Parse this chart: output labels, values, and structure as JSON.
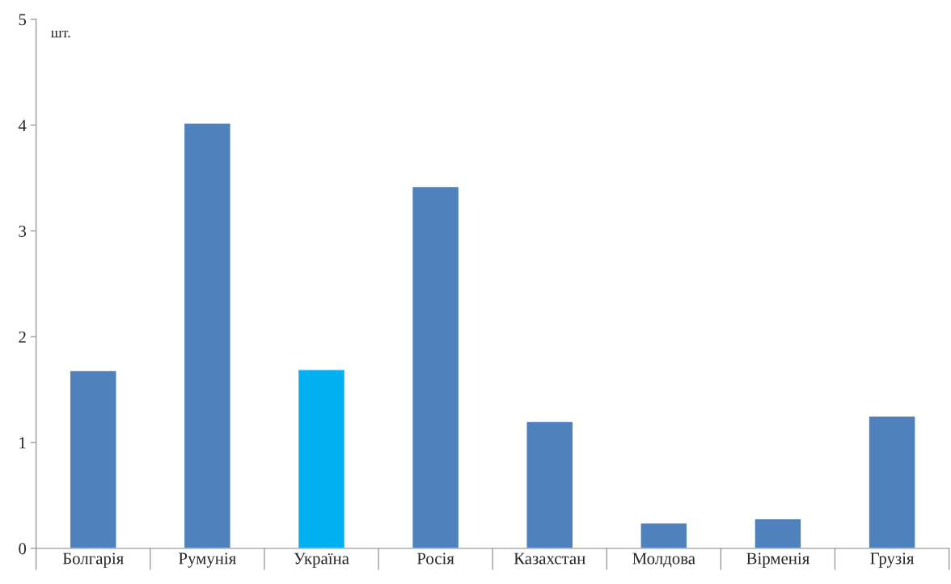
{
  "chart_data": {
    "type": "bar",
    "categories": [
      "Болгарія",
      "Румунія",
      "Україна",
      "Росія",
      "Казахстан",
      "Молдова",
      "Вірменія",
      "Грузія"
    ],
    "values": [
      1.68,
      4.02,
      1.69,
      3.42,
      1.2,
      0.24,
      0.28,
      1.25
    ],
    "colors": [
      "#4f81bd",
      "#4f81bd",
      "#00b0f0",
      "#4f81bd",
      "#4f81bd",
      "#4f81bd",
      "#4f81bd",
      "#4f81bd"
    ],
    "ylim": [
      0,
      5
    ],
    "yticks": [
      0,
      1,
      2,
      3,
      4,
      5
    ],
    "grid": false,
    "annotations": [
      "шт."
    ]
  }
}
